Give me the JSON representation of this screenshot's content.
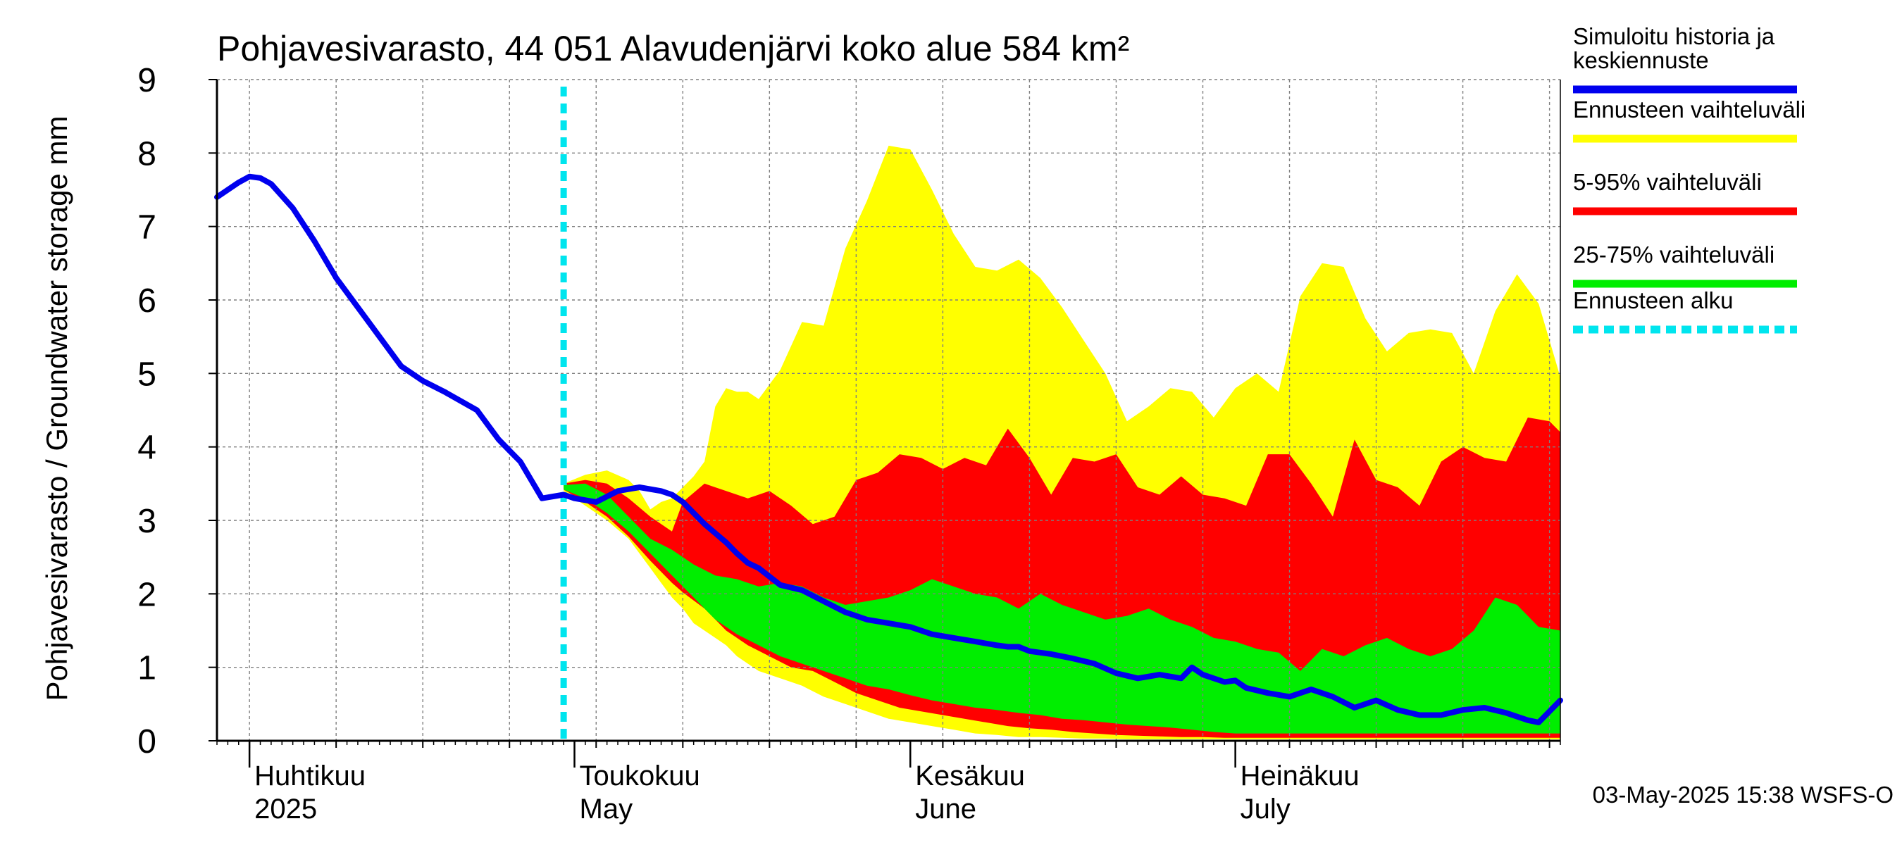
{
  "chart_data": {
    "type": "area",
    "title": "Pohjavesivarasto, 44 051 Alavudenjärvi koko alue 584 km²",
    "ylabel": "Pohjavesivarasto / Groundwater storage   mm",
    "ylim": [
      0,
      9
    ],
    "yticks": [
      "0",
      "1",
      "2",
      "3",
      "4",
      "5",
      "6",
      "7",
      "8",
      "9"
    ],
    "xlim": [
      "2025-03-29",
      "2025-07-31"
    ],
    "month_ticks": [
      {
        "date": "2025-04-01",
        "fi": "Huhtikuu",
        "en": "2025"
      },
      {
        "date": "2025-05-01",
        "fi": "Toukokuu",
        "en": "May"
      },
      {
        "date": "2025-06-01",
        "fi": "Kesäkuu",
        "en": "June"
      },
      {
        "date": "2025-07-01",
        "fi": "Heinäkuu",
        "en": "July"
      }
    ],
    "forecast_start": "2025-04-30",
    "timestamp": "03-May-2025 15:38 WSFS-O",
    "legend_position": "right",
    "legend": [
      {
        "label": "Simuloitu historia ja keskiennuste",
        "color": "#0000ee",
        "style": "solid"
      },
      {
        "label": "Ennusteen vaihteluväli",
        "color": "#ffff00",
        "style": "solid"
      },
      {
        "label": "5-95% vaihteluväli",
        "color": "#ff0000",
        "style": "solid"
      },
      {
        "label": "25-75% vaihteluväli",
        "color": "#00ee00",
        "style": "solid"
      },
      {
        "label": "Ennusteen alku",
        "color": "#00e5ee",
        "style": "dashed"
      }
    ],
    "colors": {
      "history": "#0000ee",
      "range": "#ffff00",
      "p5_95": "#ff0000",
      "p25_75": "#00ee00",
      "forecast_start": "#00e5ee",
      "grid": "#7f7f7f"
    },
    "series": [
      {
        "name": "Simuloitu historia ja keskiennuste",
        "x": [
          "2025-03-29",
          "2025-03-31",
          "2025-04-01",
          "2025-04-02",
          "2025-04-03",
          "2025-04-05",
          "2025-04-07",
          "2025-04-09",
          "2025-04-12",
          "2025-04-15",
          "2025-04-17",
          "2025-04-19",
          "2025-04-22",
          "2025-04-24",
          "2025-04-25",
          "2025-04-26",
          "2025-04-28",
          "2025-04-30",
          "2025-05-01",
          "2025-05-03",
          "2025-05-05",
          "2025-05-07",
          "2025-05-09",
          "2025-05-10",
          "2025-05-11",
          "2025-05-12",
          "2025-05-13",
          "2025-05-15",
          "2025-05-16",
          "2025-05-17",
          "2025-05-18",
          "2025-05-20",
          "2025-05-22",
          "2025-05-24",
          "2025-05-26",
          "2025-05-28",
          "2025-05-30",
          "2025-06-01",
          "2025-06-03",
          "2025-06-05",
          "2025-06-07",
          "2025-06-09",
          "2025-06-10",
          "2025-06-11",
          "2025-06-12",
          "2025-06-13",
          "2025-06-14",
          "2025-06-16",
          "2025-06-18",
          "2025-06-20",
          "2025-06-22",
          "2025-06-24",
          "2025-06-26",
          "2025-06-27",
          "2025-06-28",
          "2025-06-30",
          "2025-07-01",
          "2025-07-02",
          "2025-07-04",
          "2025-07-06",
          "2025-07-08",
          "2025-07-10",
          "2025-07-12",
          "2025-07-14",
          "2025-07-16",
          "2025-07-18",
          "2025-07-20",
          "2025-07-22",
          "2025-07-24",
          "2025-07-26",
          "2025-07-28",
          "2025-07-29",
          "2025-07-31"
        ],
        "y": [
          7.4,
          7.6,
          7.68,
          7.66,
          7.58,
          7.25,
          6.8,
          6.3,
          5.7,
          5.1,
          4.9,
          4.75,
          4.5,
          4.1,
          3.95,
          3.8,
          3.3,
          3.35,
          3.3,
          3.25,
          3.4,
          3.45,
          3.4,
          3.35,
          3.25,
          3.1,
          2.95,
          2.7,
          2.55,
          2.42,
          2.35,
          2.12,
          2.05,
          1.9,
          1.75,
          1.65,
          1.6,
          1.55,
          1.45,
          1.4,
          1.35,
          1.3,
          1.28,
          1.28,
          1.22,
          1.2,
          1.18,
          1.12,
          1.05,
          0.92,
          0.85,
          0.9,
          0.85,
          1.0,
          0.9,
          0.8,
          0.82,
          0.72,
          0.65,
          0.6,
          0.7,
          0.6,
          0.45,
          0.55,
          0.42,
          0.35,
          0.35,
          0.42,
          0.45,
          0.38,
          0.28,
          0.25,
          0.55
        ]
      },
      {
        "name": "Ennusteen vaihteluväli",
        "x": [
          "2025-04-30",
          "2025-05-02",
          "2025-05-04",
          "2025-05-06",
          "2025-05-07",
          "2025-05-08",
          "2025-05-09",
          "2025-05-10",
          "2025-05-11",
          "2025-05-12",
          "2025-05-13",
          "2025-05-14",
          "2025-05-15",
          "2025-05-16",
          "2025-05-17",
          "2025-05-18",
          "2025-05-20",
          "2025-05-22",
          "2025-05-24",
          "2025-05-26",
          "2025-05-28",
          "2025-05-30",
          "2025-06-01",
          "2025-06-03",
          "2025-06-05",
          "2025-06-07",
          "2025-06-09",
          "2025-06-11",
          "2025-06-13",
          "2025-06-15",
          "2025-06-17",
          "2025-06-19",
          "2025-06-21",
          "2025-06-23",
          "2025-06-25",
          "2025-06-27",
          "2025-06-29",
          "2025-07-01",
          "2025-07-03",
          "2025-07-05",
          "2025-07-07",
          "2025-07-09",
          "2025-07-11",
          "2025-07-13",
          "2025-07-15",
          "2025-07-17",
          "2025-07-19",
          "2025-07-21",
          "2025-07-23",
          "2025-07-25",
          "2025-07-27",
          "2025-07-29",
          "2025-07-31"
        ],
        "low": [
          3.4,
          3.2,
          3.0,
          2.75,
          2.55,
          2.35,
          2.15,
          1.95,
          1.8,
          1.6,
          1.5,
          1.4,
          1.3,
          1.15,
          1.05,
          0.95,
          0.85,
          0.75,
          0.6,
          0.5,
          0.4,
          0.3,
          0.25,
          0.2,
          0.15,
          0.1,
          0.08,
          0.05,
          0.05,
          0.04,
          0.03,
          0.03,
          0.02,
          0.02,
          0.02,
          0.02,
          0.02,
          0.02,
          0.02,
          0.02,
          0.02,
          0.02,
          0.02,
          0.02,
          0.02,
          0.02,
          0.02,
          0.02,
          0.02,
          0.02,
          0.02,
          0.02,
          0.02
        ],
        "high": [
          3.5,
          3.62,
          3.68,
          3.55,
          3.4,
          3.15,
          3.25,
          3.3,
          3.45,
          3.6,
          3.8,
          4.55,
          4.8,
          4.75,
          4.75,
          4.65,
          5.05,
          5.7,
          5.65,
          6.7,
          7.35,
          8.1,
          8.05,
          7.5,
          6.9,
          6.45,
          6.4,
          6.55,
          6.3,
          5.9,
          5.45,
          5.0,
          4.35,
          4.55,
          4.8,
          4.75,
          4.4,
          4.8,
          5.0,
          4.75,
          6.05,
          6.5,
          6.45,
          5.75,
          5.3,
          5.55,
          5.6,
          5.55,
          5.0,
          5.85,
          6.35,
          5.95,
          4.95
        ]
      },
      {
        "name": "5-95% vaihteluväli",
        "x": [
          "2025-04-30",
          "2025-05-02",
          "2025-05-04",
          "2025-05-06",
          "2025-05-08",
          "2025-05-10",
          "2025-05-11",
          "2025-05-13",
          "2025-05-15",
          "2025-05-17",
          "2025-05-19",
          "2025-05-21",
          "2025-05-23",
          "2025-05-25",
          "2025-05-27",
          "2025-05-29",
          "2025-05-31",
          "2025-06-02",
          "2025-06-04",
          "2025-06-06",
          "2025-06-08",
          "2025-06-10",
          "2025-06-12",
          "2025-06-14",
          "2025-06-16",
          "2025-06-18",
          "2025-06-20",
          "2025-06-22",
          "2025-06-24",
          "2025-06-26",
          "2025-06-28",
          "2025-06-30",
          "2025-07-02",
          "2025-07-04",
          "2025-07-06",
          "2025-07-08",
          "2025-07-10",
          "2025-07-12",
          "2025-07-14",
          "2025-07-16",
          "2025-07-18",
          "2025-07-20",
          "2025-07-22",
          "2025-07-24",
          "2025-07-26",
          "2025-07-28",
          "2025-07-30",
          "2025-07-31"
        ],
        "low": [
          3.42,
          3.25,
          3.05,
          2.78,
          2.45,
          2.15,
          2.02,
          1.8,
          1.5,
          1.3,
          1.15,
          1.0,
          0.95,
          0.8,
          0.65,
          0.55,
          0.45,
          0.4,
          0.35,
          0.3,
          0.25,
          0.2,
          0.17,
          0.15,
          0.12,
          0.1,
          0.08,
          0.07,
          0.06,
          0.05,
          0.05,
          0.04,
          0.04,
          0.04,
          0.04,
          0.04,
          0.04,
          0.04,
          0.04,
          0.04,
          0.04,
          0.04,
          0.04,
          0.04,
          0.04,
          0.04,
          0.04,
          0.04
        ],
        "high": [
          3.5,
          3.55,
          3.5,
          3.3,
          3.05,
          2.85,
          3.25,
          3.5,
          3.4,
          3.3,
          3.4,
          3.2,
          2.95,
          3.05,
          3.55,
          3.65,
          3.9,
          3.85,
          3.7,
          3.85,
          3.75,
          4.25,
          3.85,
          3.35,
          3.85,
          3.8,
          3.9,
          3.45,
          3.35,
          3.6,
          3.35,
          3.3,
          3.2,
          3.9,
          3.9,
          3.5,
          3.05,
          4.1,
          3.55,
          3.45,
          3.2,
          3.8,
          4.0,
          3.85,
          3.8,
          4.4,
          4.35,
          4.2
        ]
      },
      {
        "name": "25-75% vaihteluväli",
        "x": [
          "2025-04-30",
          "2025-05-02",
          "2025-05-04",
          "2025-05-06",
          "2025-05-08",
          "2025-05-10",
          "2025-05-12",
          "2025-05-14",
          "2025-05-16",
          "2025-05-18",
          "2025-05-20",
          "2025-05-22",
          "2025-05-24",
          "2025-05-26",
          "2025-05-28",
          "2025-05-30",
          "2025-06-01",
          "2025-06-03",
          "2025-06-05",
          "2025-06-07",
          "2025-06-09",
          "2025-06-11",
          "2025-06-13",
          "2025-06-15",
          "2025-06-17",
          "2025-06-19",
          "2025-06-21",
          "2025-06-23",
          "2025-06-25",
          "2025-06-27",
          "2025-06-29",
          "2025-07-01",
          "2025-07-03",
          "2025-07-05",
          "2025-07-07",
          "2025-07-09",
          "2025-07-11",
          "2025-07-13",
          "2025-07-15",
          "2025-07-17",
          "2025-07-19",
          "2025-07-21",
          "2025-07-23",
          "2025-07-25",
          "2025-07-27",
          "2025-07-29",
          "2025-07-31"
        ],
        "low": [
          3.42,
          3.3,
          3.1,
          2.85,
          2.55,
          2.25,
          1.95,
          1.65,
          1.45,
          1.3,
          1.15,
          1.05,
          0.95,
          0.85,
          0.75,
          0.7,
          0.62,
          0.55,
          0.5,
          0.45,
          0.42,
          0.38,
          0.35,
          0.3,
          0.28,
          0.25,
          0.22,
          0.2,
          0.18,
          0.15,
          0.12,
          0.1,
          0.1,
          0.1,
          0.1,
          0.1,
          0.1,
          0.1,
          0.1,
          0.1,
          0.1,
          0.1,
          0.1,
          0.1,
          0.1,
          0.1,
          0.1
        ],
        "high": [
          3.48,
          3.5,
          3.35,
          3.05,
          2.75,
          2.6,
          2.4,
          2.25,
          2.2,
          2.1,
          2.15,
          2.1,
          1.95,
          1.85,
          1.9,
          1.95,
          2.05,
          2.2,
          2.1,
          2.0,
          1.95,
          1.8,
          2.0,
          1.85,
          1.75,
          1.65,
          1.7,
          1.8,
          1.65,
          1.55,
          1.4,
          1.35,
          1.25,
          1.2,
          0.95,
          1.25,
          1.15,
          1.3,
          1.4,
          1.25,
          1.15,
          1.25,
          1.5,
          1.95,
          1.85,
          1.55,
          1.5
        ]
      }
    ]
  }
}
